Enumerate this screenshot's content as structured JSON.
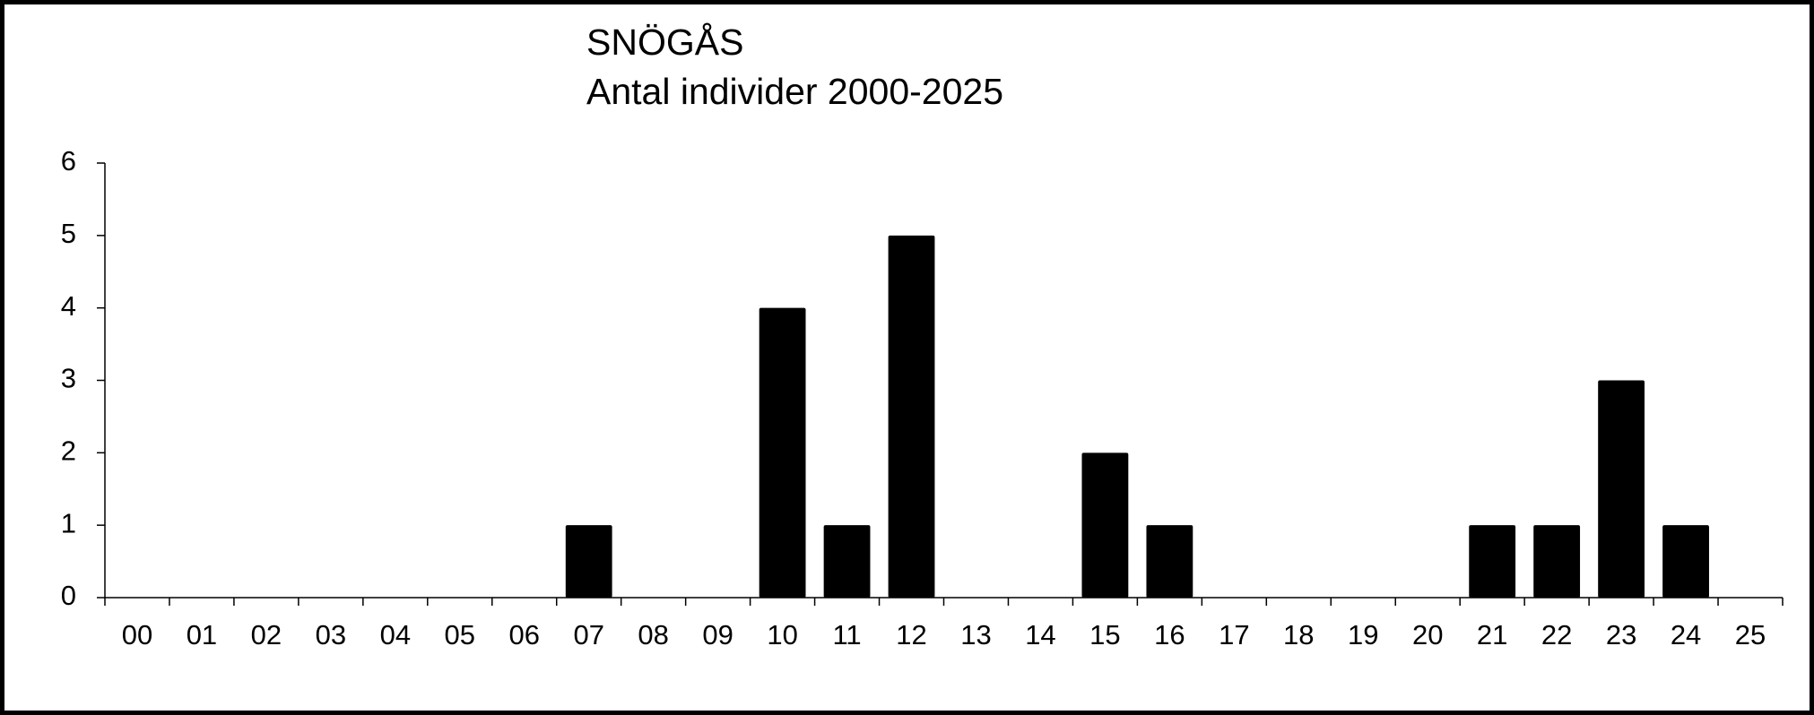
{
  "chart_data": {
    "type": "bar",
    "title": "SNÖGÅS",
    "subtitle": "Antal individer 2000-2025",
    "categories": [
      "00",
      "01",
      "02",
      "03",
      "04",
      "05",
      "06",
      "07",
      "08",
      "09",
      "10",
      "11",
      "12",
      "13",
      "14",
      "15",
      "16",
      "17",
      "18",
      "19",
      "20",
      "21",
      "22",
      "23",
      "24",
      "25"
    ],
    "values": [
      0,
      0,
      0,
      0,
      0,
      0,
      0,
      1,
      0,
      0,
      4,
      1,
      5,
      0,
      0,
      2,
      1,
      0,
      0,
      0,
      0,
      1,
      1,
      3,
      1,
      0
    ],
    "color": "#000000",
    "ylim": [
      0,
      6
    ],
    "yticks": [
      0,
      1,
      2,
      3,
      4,
      5,
      6
    ],
    "grid": false
  }
}
